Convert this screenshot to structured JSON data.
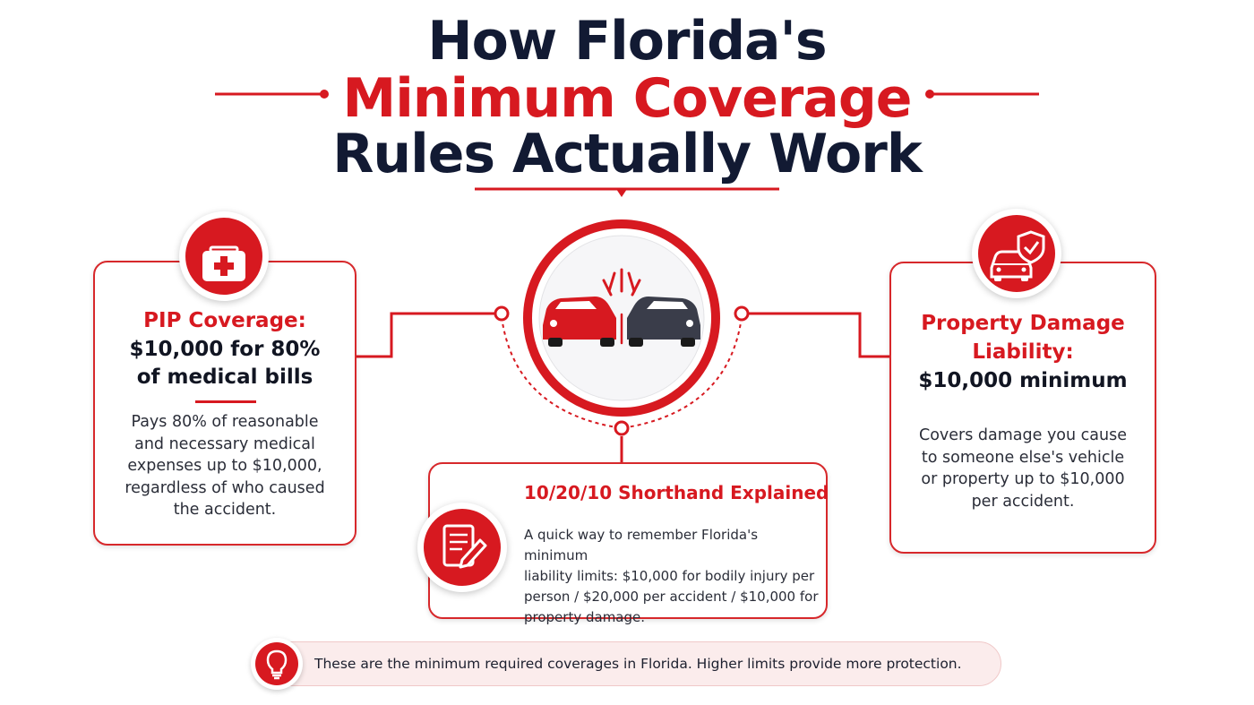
{
  "title": {
    "line1": "How Florida's",
    "line2": "Minimum Coverage",
    "line3": "Rules Actually Work"
  },
  "center": {
    "icon": "car-collision-icon"
  },
  "pip": {
    "icon": "first-aid-kit-icon",
    "title": "PIP Coverage:",
    "subtitle_line1": "$10,000 for 80%",
    "subtitle_line2": "of medical bills",
    "body": [
      "Pays 80% of reasonable",
      "and necessary medical",
      "expenses up to $10,000,",
      "regardless of who caused",
      "the accident."
    ]
  },
  "property": {
    "icon": "car-shield-icon",
    "title_line1": "Property Damage",
    "title_line2": "Liability:",
    "subtitle": "$10,000 minimum",
    "body": [
      "Covers damage you cause",
      "to someone else's vehicle",
      "or property up to $10,000",
      "per accident."
    ]
  },
  "shorthand": {
    "icon": "document-pen-icon",
    "title": "10/20/10 Shorthand Explained",
    "body": [
      "A quick way to remember Florida's minimum",
      "liability limits: $10,000 for bodily injury per",
      "person / $20,000 per accident / $10,000 for",
      "property damage."
    ]
  },
  "note": {
    "icon": "lightbulb-icon",
    "text": "These are the minimum required coverages in Florida. Higher limits provide more protection."
  },
  "colors": {
    "accent": "#d71920",
    "dark": "#121a33",
    "car_dark": "#3a3d4a"
  }
}
